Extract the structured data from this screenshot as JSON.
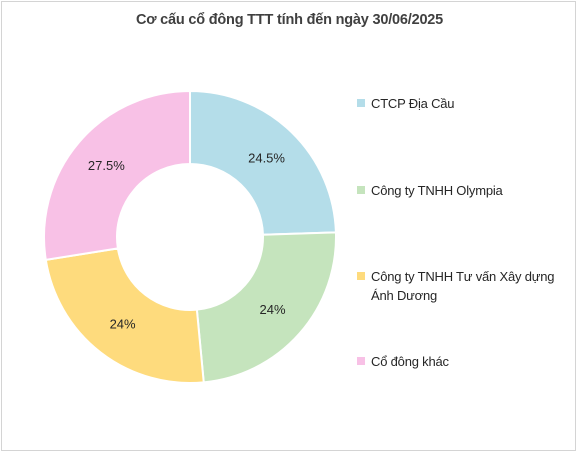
{
  "chart_data": {
    "type": "pie",
    "variant": "donut",
    "title": "Cơ cấu cổ đông TTT tính đến ngày 30/06/2025",
    "categories": [
      "CTCP Địa Cầu",
      "Công ty TNHH Olympia",
      "Công ty TNHH Tư vấn Xây dựng Ánh Dương",
      "Cổ đông khác"
    ],
    "values": [
      24.5,
      24,
      24,
      27.5
    ],
    "labels": [
      "24.5%",
      "24%",
      "24%",
      "27.5%"
    ],
    "colors": [
      "#b4dde9",
      "#c5e4bd",
      "#fedb7d",
      "#f8c1e6"
    ],
    "legend_position": "right"
  }
}
